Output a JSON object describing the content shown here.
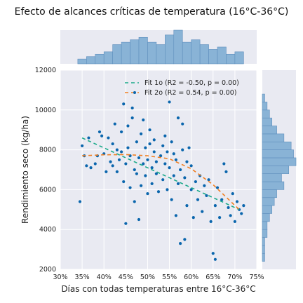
{
  "chart_data": {
    "type": "scatter",
    "title": "Efecto de alcances críticas de temperatura (16°C-36°C)",
    "xlabel": "Días con todas temperaturas entre 16°C-36°C",
    "ylabel": "Rendimiento seco (kg/ha)",
    "xlim": [
      0.3,
      0.75
    ],
    "ylim": [
      2000,
      12000
    ],
    "x_ticks": [
      "30%",
      "35%",
      "40%",
      "45%",
      "50%",
      "55%",
      "60%",
      "65%",
      "70%",
      "75%"
    ],
    "x_tick_values": [
      0.3,
      0.35,
      0.4,
      0.45,
      0.5,
      0.55,
      0.6,
      0.65,
      0.7,
      0.75
    ],
    "y_ticks": [
      "2000",
      "4000",
      "6000",
      "8000",
      "10000",
      "12000"
    ],
    "y_tick_values": [
      2000,
      4000,
      6000,
      8000,
      10000,
      12000
    ],
    "grid": true,
    "legend_position": "top-right",
    "colors": {
      "points": "#0b66ad",
      "fit1": "#1aa98a",
      "fit2": "#f07f22",
      "hist": "#89b3d6",
      "hist_edge": "#5f8fbd",
      "background": "#e9eaf2"
    },
    "series": [
      {
        "kind": "scatter",
        "points": [
          [
            0.345,
            5400
          ],
          [
            0.35,
            8200
          ],
          [
            0.355,
            7700
          ],
          [
            0.36,
            7200
          ],
          [
            0.365,
            8600
          ],
          [
            0.37,
            7100
          ],
          [
            0.38,
            7300
          ],
          [
            0.385,
            7700
          ],
          [
            0.39,
            8900
          ],
          [
            0.395,
            8700
          ],
          [
            0.4,
            7800
          ],
          [
            0.405,
            6900
          ],
          [
            0.41,
            8600
          ],
          [
            0.415,
            7400
          ],
          [
            0.42,
            7200
          ],
          [
            0.42,
            8300
          ],
          [
            0.425,
            9300
          ],
          [
            0.43,
            6900
          ],
          [
            0.43,
            8000
          ],
          [
            0.435,
            7500
          ],
          [
            0.44,
            7900
          ],
          [
            0.44,
            8900
          ],
          [
            0.445,
            6400
          ],
          [
            0.445,
            10300
          ],
          [
            0.45,
            4300
          ],
          [
            0.45,
            7300
          ],
          [
            0.455,
            9200
          ],
          [
            0.455,
            8100
          ],
          [
            0.46,
            6100
          ],
          [
            0.46,
            7700
          ],
          [
            0.465,
            9600
          ],
          [
            0.465,
            10100
          ],
          [
            0.47,
            5400
          ],
          [
            0.47,
            7000
          ],
          [
            0.475,
            8400
          ],
          [
            0.475,
            6800
          ],
          [
            0.48,
            4500
          ],
          [
            0.48,
            7600
          ],
          [
            0.485,
            6200
          ],
          [
            0.485,
            8800
          ],
          [
            0.49,
            7300
          ],
          [
            0.49,
            9500
          ],
          [
            0.495,
            6700
          ],
          [
            0.495,
            8100
          ],
          [
            0.5,
            5800
          ],
          [
            0.5,
            7500
          ],
          [
            0.505,
            8300
          ],
          [
            0.505,
            9000
          ],
          [
            0.51,
            6300
          ],
          [
            0.51,
            7100
          ],
          [
            0.515,
            7900
          ],
          [
            0.515,
            8500
          ],
          [
            0.52,
            6800
          ],
          [
            0.52,
            7400
          ],
          [
            0.525,
            5900
          ],
          [
            0.53,
            7700
          ],
          [
            0.535,
            8200
          ],
          [
            0.535,
            6500
          ],
          [
            0.54,
            7300
          ],
          [
            0.54,
            8700
          ],
          [
            0.545,
            6000
          ],
          [
            0.545,
            7900
          ],
          [
            0.55,
            10400
          ],
          [
            0.55,
            7100
          ],
          [
            0.555,
            5500
          ],
          [
            0.555,
            8400
          ],
          [
            0.56,
            6700
          ],
          [
            0.56,
            7800
          ],
          [
            0.565,
            4700
          ],
          [
            0.565,
            7500
          ],
          [
            0.57,
            9600
          ],
          [
            0.57,
            6300
          ],
          [
            0.575,
            3300
          ],
          [
            0.575,
            7000
          ],
          [
            0.58,
            9300
          ],
          [
            0.58,
            8000
          ],
          [
            0.585,
            3500
          ],
          [
            0.585,
            6600
          ],
          [
            0.59,
            5200
          ],
          [
            0.59,
            7400
          ],
          [
            0.595,
            8100
          ],
          [
            0.6,
            6000
          ],
          [
            0.6,
            7200
          ],
          [
            0.605,
            4600
          ],
          [
            0.61,
            6400
          ],
          [
            0.615,
            5500
          ],
          [
            0.62,
            6700
          ],
          [
            0.625,
            4900
          ],
          [
            0.63,
            6200
          ],
          [
            0.635,
            5700
          ],
          [
            0.64,
            6500
          ],
          [
            0.645,
            4400
          ],
          [
            0.65,
            2800
          ],
          [
            0.655,
            2500
          ],
          [
            0.655,
            5200
          ],
          [
            0.66,
            6100
          ],
          [
            0.665,
            4600
          ],
          [
            0.67,
            5500
          ],
          [
            0.675,
            7300
          ],
          [
            0.68,
            6900
          ],
          [
            0.685,
            5100
          ],
          [
            0.69,
            4700
          ],
          [
            0.695,
            5800
          ],
          [
            0.7,
            4400
          ],
          [
            0.705,
            5400
          ],
          [
            0.71,
            5000
          ],
          [
            0.715,
            4800
          ],
          [
            0.72,
            5200
          ]
        ]
      },
      {
        "name": "Fit 1o (R2 = -0.50, p = 0.00)",
        "kind": "line",
        "style": "dashed",
        "points": [
          [
            0.35,
            8600
          ],
          [
            0.71,
            5000
          ]
        ]
      },
      {
        "name": "Fit 2o (R2 = 0.54, p = 0.00)",
        "kind": "curve",
        "style": "dashed-with-dots",
        "points": [
          [
            0.35,
            7700
          ],
          [
            0.4,
            7750
          ],
          [
            0.45,
            7760
          ],
          [
            0.5,
            7700
          ],
          [
            0.55,
            7550
          ],
          [
            0.6,
            7050
          ],
          [
            0.65,
            6250
          ],
          [
            0.71,
            5000
          ]
        ]
      }
    ],
    "marginal_x_hist": {
      "bins": [
        0.34,
        0.36,
        0.38,
        0.4,
        0.42,
        0.44,
        0.46,
        0.48,
        0.5,
        0.52,
        0.54,
        0.56,
        0.58,
        0.6,
        0.62,
        0.64,
        0.66,
        0.68,
        0.7,
        0.72
      ],
      "counts": [
        2,
        3,
        4,
        5,
        8,
        9,
        10,
        11,
        9,
        8,
        12,
        14,
        9,
        10,
        8,
        6,
        7,
        4,
        5
      ]
    },
    "marginal_y_hist": {
      "bins": [
        2400,
        2800,
        3200,
        3600,
        4000,
        4400,
        4800,
        5200,
        5600,
        6000,
        6400,
        6800,
        7200,
        7600,
        8000,
        8400,
        8800,
        9200,
        9600,
        10000,
        10400,
        10800
      ],
      "counts": [
        1,
        1,
        1,
        2,
        2,
        3,
        4,
        5,
        6,
        9,
        8,
        11,
        14,
        13,
        12,
        9,
        6,
        4,
        3,
        2,
        1
      ]
    }
  }
}
